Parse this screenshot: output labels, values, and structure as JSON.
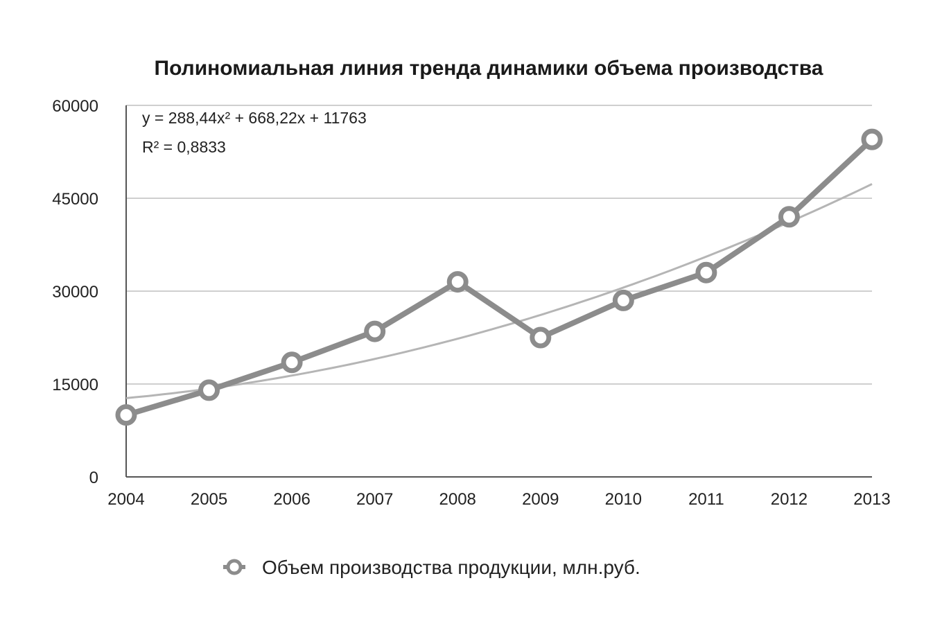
{
  "chart_data": {
    "type": "line",
    "title": "Полиномиальная линия тренда динамики объема производства",
    "categories": [
      "2004",
      "2005",
      "2006",
      "2007",
      "2008",
      "2009",
      "2010",
      "2011",
      "2012",
      "2013"
    ],
    "series": [
      {
        "name": "Объем производства продукции, млн.руб.",
        "values": [
          10000,
          14000,
          18500,
          23500,
          31500,
          22500,
          28500,
          33000,
          42000,
          54500
        ],
        "color": "#8c8c8c"
      }
    ],
    "trendline": {
      "kind": "polynomial",
      "order": 2,
      "equation_text": "y = 288,44x² + 668,22x + 11763",
      "r2_text": "R² = 0,8833",
      "coefficients": {
        "a": 288.44,
        "b": 668.22,
        "c": 11763
      },
      "color": "#b5b5b5"
    },
    "y_ticks": [
      "0",
      "15000",
      "30000",
      "45000",
      "60000"
    ],
    "ylim": [
      0,
      60000
    ],
    "grid": true,
    "legend": {
      "position": "bottom"
    }
  }
}
